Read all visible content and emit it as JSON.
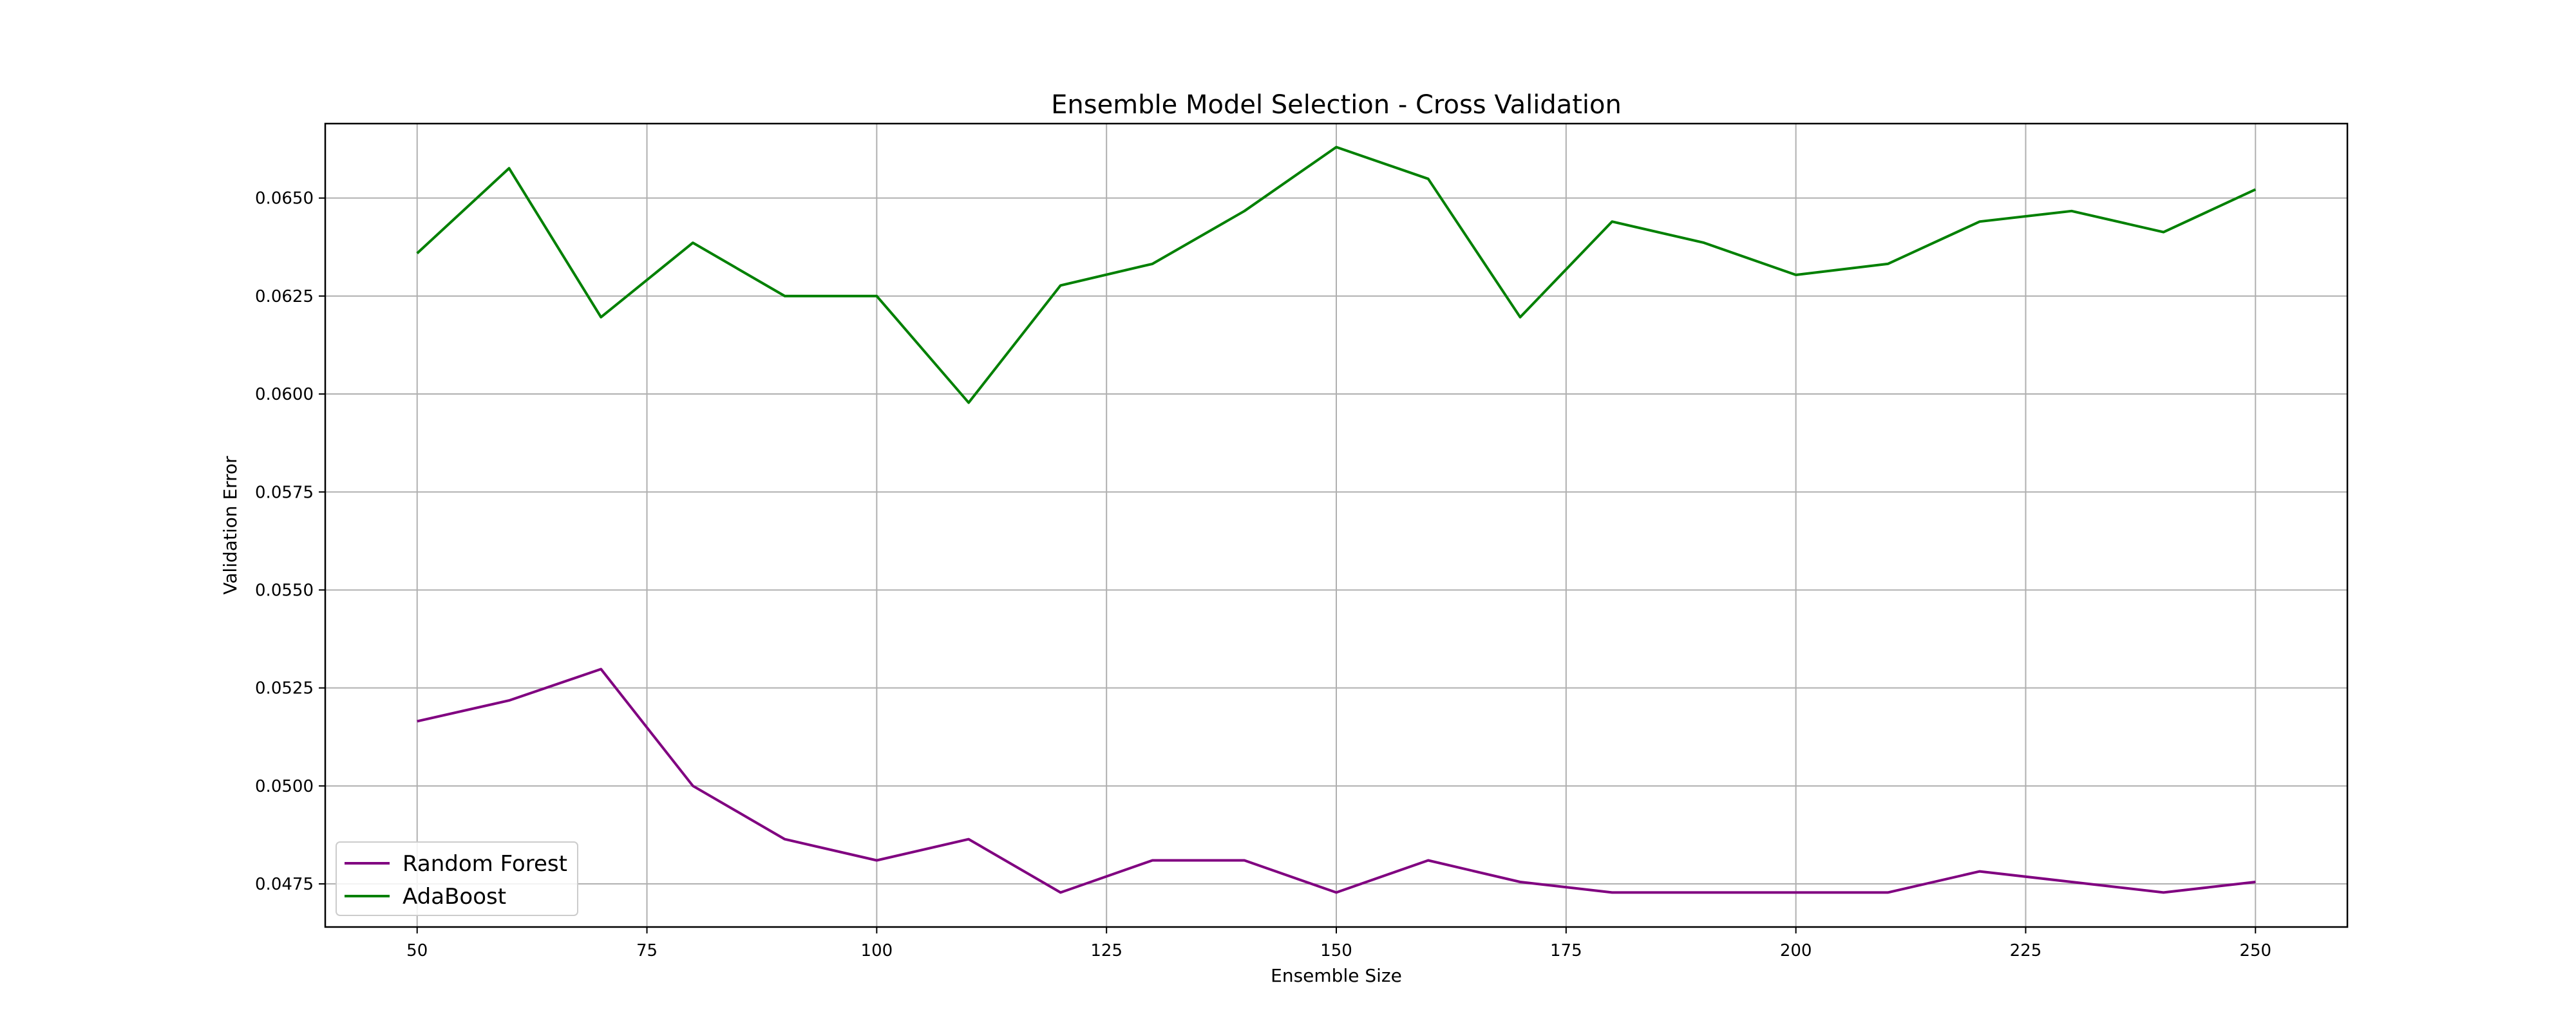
{
  "chart_data": {
    "type": "line",
    "title": "Ensemble Model Selection - Cross Validation",
    "xlabel": "Ensemble Size",
    "ylabel": "Validation Error",
    "xlim": [
      40,
      260
    ],
    "ylim": [
      0.0464,
      0.0669
    ],
    "xticks": [
      50,
      75,
      100,
      125,
      150,
      175,
      200,
      225,
      250
    ],
    "yticks": [
      0.0475,
      0.05,
      0.0525,
      0.055,
      0.0575,
      0.06,
      0.0625,
      0.065
    ],
    "ytick_labels": [
      "0.0475",
      "0.0500",
      "0.0525",
      "0.0550",
      "0.0575",
      "0.0600",
      "0.0625",
      "0.0650"
    ],
    "grid": true,
    "legend_position": "lower-left",
    "x": [
      50,
      60,
      70,
      80,
      90,
      100,
      110,
      120,
      130,
      140,
      150,
      160,
      170,
      180,
      190,
      200,
      210,
      220,
      230,
      240,
      250
    ],
    "series": [
      {
        "name": "Random Forest",
        "color": "#800080",
        "values": [
          0.05165,
          0.05218,
          0.05298,
          0.05,
          0.04864,
          0.0481,
          0.04864,
          0.04728,
          0.0481,
          0.0481,
          0.04728,
          0.0481,
          0.04755,
          0.04728,
          0.04728,
          0.04728,
          0.04728,
          0.04782,
          0.04755,
          0.04728,
          0.04755
        ]
      },
      {
        "name": "AdaBoost",
        "color": "#008000",
        "values": [
          0.06359,
          0.06576,
          0.06196,
          0.06386,
          0.0625,
          0.0625,
          0.05978,
          0.06277,
          0.06332,
          0.06467,
          0.0663,
          0.06549,
          0.06196,
          0.0644,
          0.06386,
          0.06304,
          0.06332,
          0.0644,
          0.06467,
          0.06413,
          0.06522
        ]
      }
    ]
  }
}
